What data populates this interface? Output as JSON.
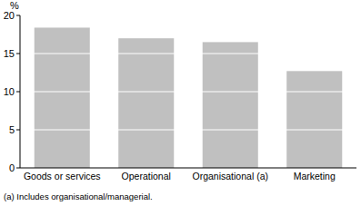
{
  "chart_data": {
    "type": "bar",
    "y_label": "%",
    "categories": [
      "Goods or services",
      "Operational",
      "Organisational (a)",
      "Marketing"
    ],
    "values": [
      18.4,
      17.0,
      16.5,
      12.7
    ],
    "color": "#c0c0c0",
    "ylim": [
      0,
      20
    ],
    "yticks": [
      0,
      5,
      10,
      15,
      20
    ],
    "grid": true,
    "footnote": "(a) Includes organisational/managerial."
  }
}
